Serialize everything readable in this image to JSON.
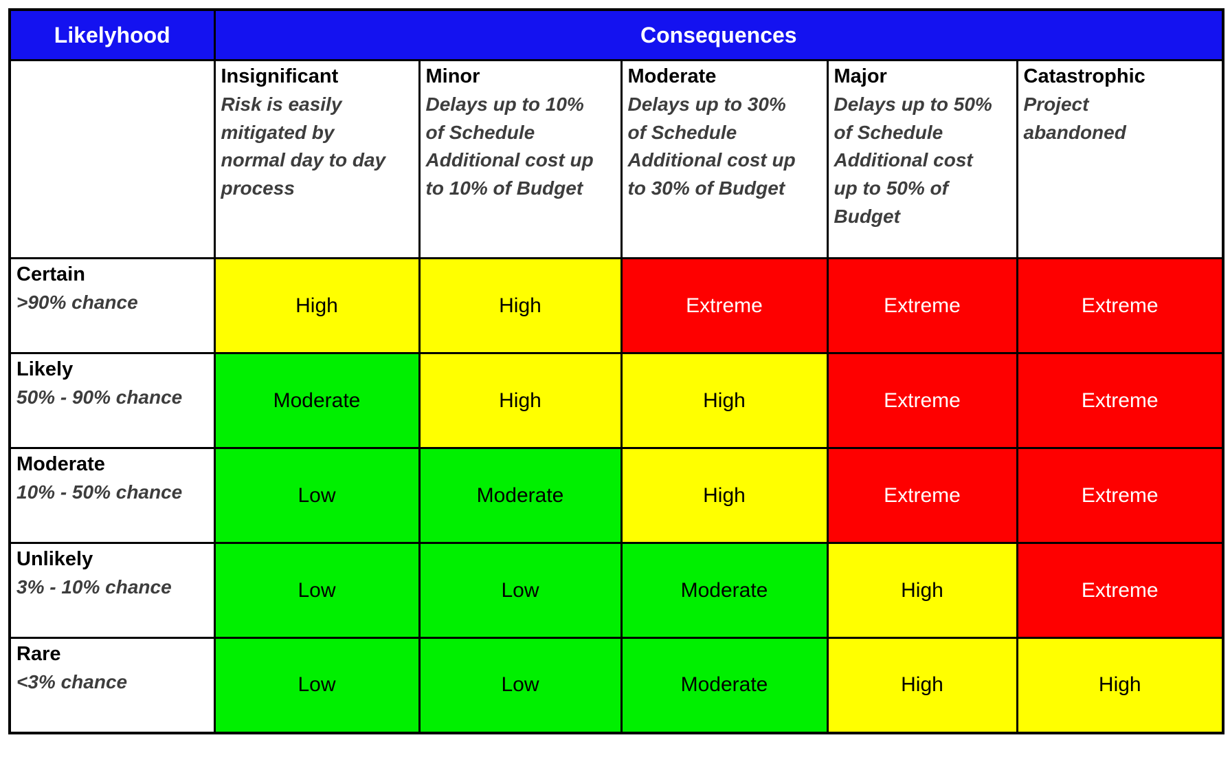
{
  "header": {
    "likelihood_label": "Likelyhood",
    "consequences_label": "Consequences"
  },
  "colors": {
    "header_bg": "#1412F0",
    "header_text": "#FFFFFF",
    "border": "#000000",
    "description_text": "#3D3D3D",
    "cell_text": "#000000",
    "extreme_text": "#FFFFFF",
    "level_low_bg": "#00F000",
    "level_moderate_bg": "#00F000",
    "level_high_bg": "#FFFF00",
    "level_extreme_bg": "#FE0000"
  },
  "consequence_columns": [
    {
      "title": "Insignificant",
      "description": "Risk is easily mitigated by normal day to day process",
      "description_lines": [
        "Risk is easily",
        "mitigated by",
        "normal day to day",
        "process"
      ]
    },
    {
      "title": "Minor",
      "description": "Delays up to 10% of Schedule Additional cost up to 10% of Budget",
      "description_lines": [
        "Delays up to 10%",
        "of Schedule",
        "Additional cost up",
        "to 10% of Budget"
      ]
    },
    {
      "title": "Moderate",
      "description": "Delays up to 30% of Schedule Additional cost up to 30% of Budget",
      "description_lines": [
        "Delays up to 30%",
        "of Schedule",
        "Additional cost up",
        "to 30% of Budget"
      ]
    },
    {
      "title": "Major",
      "description": "Delays up to 50% of Schedule Additional cost up to 50% of Budget",
      "description_lines": [
        "Delays up to 50%",
        "of Schedule",
        "Additional cost",
        "up to 50% of",
        "Budget"
      ]
    },
    {
      "title": "Catastrophic",
      "description": "Project abandoned",
      "description_lines": [
        "Project",
        "abandoned"
      ]
    }
  ],
  "likelihood_rows": [
    {
      "title": "Certain",
      "description": ">90% chance",
      "cells": [
        {
          "label": "High",
          "level": "high"
        },
        {
          "label": "High",
          "level": "high"
        },
        {
          "label": "Extreme",
          "level": "extreme"
        },
        {
          "label": "Extreme",
          "level": "extreme"
        },
        {
          "label": "Extreme",
          "level": "extreme"
        }
      ]
    },
    {
      "title": "Likely",
      "description": "50% - 90% chance",
      "cells": [
        {
          "label": "Moderate",
          "level": "moderate"
        },
        {
          "label": "High",
          "level": "high"
        },
        {
          "label": "High",
          "level": "high"
        },
        {
          "label": "Extreme",
          "level": "extreme"
        },
        {
          "label": "Extreme",
          "level": "extreme"
        }
      ]
    },
    {
      "title": "Moderate",
      "description": "10% - 50% chance",
      "cells": [
        {
          "label": "Low",
          "level": "low"
        },
        {
          "label": "Moderate",
          "level": "moderate"
        },
        {
          "label": "High",
          "level": "high"
        },
        {
          "label": "Extreme",
          "level": "extreme"
        },
        {
          "label": "Extreme",
          "level": "extreme"
        }
      ]
    },
    {
      "title": "Unlikely",
      "description": "3% - 10% chance",
      "cells": [
        {
          "label": "Low",
          "level": "low"
        },
        {
          "label": "Low",
          "level": "low"
        },
        {
          "label": "Moderate",
          "level": "moderate"
        },
        {
          "label": "High",
          "level": "high"
        },
        {
          "label": "Extreme",
          "level": "extreme"
        }
      ]
    },
    {
      "title": "Rare",
      "description": "<3% chance",
      "cells": [
        {
          "label": "Low",
          "level": "low"
        },
        {
          "label": "Low",
          "level": "low"
        },
        {
          "label": "Moderate",
          "level": "moderate"
        },
        {
          "label": "High",
          "level": "high"
        },
        {
          "label": "High",
          "level": "high"
        }
      ]
    }
  ],
  "chart_data": {
    "type": "table",
    "title": "Risk assessment matrix (Likelyhood x Consequences)",
    "row_header": "Likelyhood",
    "column_header": "Consequences",
    "columns": [
      "Insignificant",
      "Minor",
      "Moderate",
      "Major",
      "Catastrophic"
    ],
    "rows": [
      "Certain",
      "Likely",
      "Moderate",
      "Unlikely",
      "Rare"
    ],
    "values": [
      [
        "High",
        "High",
        "Extreme",
        "Extreme",
        "Extreme"
      ],
      [
        "Moderate",
        "High",
        "High",
        "Extreme",
        "Extreme"
      ],
      [
        "Low",
        "Moderate",
        "High",
        "Extreme",
        "Extreme"
      ],
      [
        "Low",
        "Low",
        "Moderate",
        "High",
        "Extreme"
      ],
      [
        "Low",
        "Low",
        "Moderate",
        "High",
        "High"
      ]
    ],
    "legend": {
      "Low": "#00F000",
      "Moderate": "#00F000",
      "High": "#FFFF00",
      "Extreme": "#FE0000"
    }
  }
}
